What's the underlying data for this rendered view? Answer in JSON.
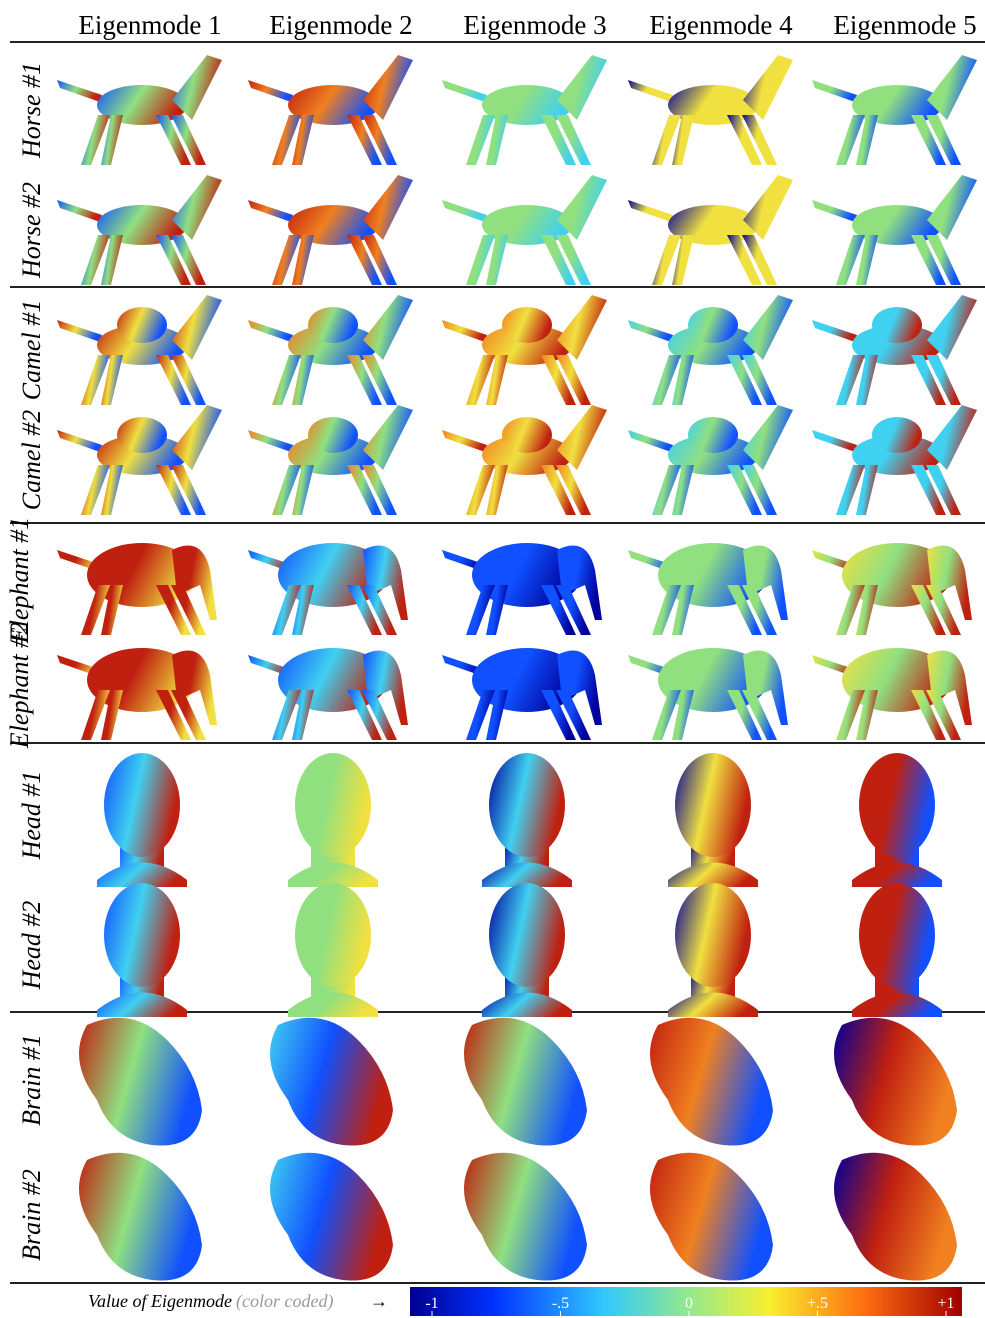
{
  "header": {
    "columns": [
      "Eigenmode 1",
      "Eigenmode 2",
      "Eigenmode 3",
      "Eigenmode 4",
      "Eigenmode 5"
    ]
  },
  "row_labels": [
    "Horse #1",
    "Horse #2",
    "Camel #1",
    "Camel #2",
    "Elephant #1",
    "Elephant #2",
    "Head #1",
    "Head #2",
    "Brain #1",
    "Brain #2"
  ],
  "legend": {
    "label": "Value of Eigenmode",
    "note": "(color coded)",
    "arrow": "→",
    "range": [
      -1,
      1
    ],
    "ticks": [
      {
        "value": -1,
        "label": "-1"
      },
      {
        "value": -0.5,
        "label": "-.5"
      },
      {
        "value": 0,
        "label": "0"
      },
      {
        "value": 0.5,
        "label": "+.5"
      },
      {
        "value": 1,
        "label": "+1"
      }
    ]
  }
}
